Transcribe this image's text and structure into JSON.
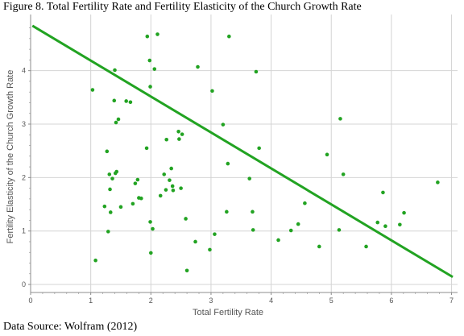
{
  "title": "Figure 8.  Total Fertility Rate and Fertility Elasticity of the Church Growth Rate",
  "footer": "Data Source: Wolfram (2012)",
  "chart_data": {
    "type": "scatter",
    "xlabel": "Total Fertility Rate",
    "ylabel": "Fertility Elasticity of the Church Growth Rate",
    "xlim": [
      0,
      7.1
    ],
    "ylim": [
      -0.15,
      5.05
    ],
    "xticks": [
      "0",
      "1",
      "2",
      "3",
      "4",
      "5",
      "6",
      "7"
    ],
    "yticks": [
      "0",
      "1",
      "2",
      "3",
      "4"
    ],
    "grid": true,
    "colors": {
      "points": "#22a322",
      "trend": "#22a322",
      "grid": "#d4d4d4",
      "axis": "#8c8c8c"
    },
    "trendline": {
      "x": [
        0.03,
        7.02
      ],
      "y": [
        4.84,
        0.14
      ]
    },
    "points": [
      [
        1.03,
        3.64
      ],
      [
        1.08,
        0.45
      ],
      [
        1.23,
        1.46
      ],
      [
        1.27,
        2.49
      ],
      [
        1.29,
        0.99
      ],
      [
        1.31,
        2.06
      ],
      [
        1.33,
        1.35
      ],
      [
        1.32,
        1.78
      ],
      [
        1.36,
        1.98
      ],
      [
        1.39,
        3.44
      ],
      [
        1.4,
        4.01
      ],
      [
        1.41,
        2.08
      ],
      [
        1.43,
        2.11
      ],
      [
        1.42,
        3.03
      ],
      [
        1.46,
        3.09
      ],
      [
        1.5,
        1.45
      ],
      [
        1.59,
        3.43
      ],
      [
        1.66,
        3.41
      ],
      [
        1.7,
        1.51
      ],
      [
        1.74,
        1.89
      ],
      [
        1.78,
        1.96
      ],
      [
        1.8,
        1.62
      ],
      [
        1.84,
        1.61
      ],
      [
        1.94,
        4.64
      ],
      [
        1.93,
        2.55
      ],
      [
        1.98,
        4.19
      ],
      [
        1.99,
        3.7
      ],
      [
        1.99,
        1.17
      ],
      [
        2.0,
        0.59
      ],
      [
        2.03,
        1.04
      ],
      [
        2.06,
        4.03
      ],
      [
        2.11,
        4.68
      ],
      [
        2.16,
        1.66
      ],
      [
        2.22,
        2.06
      ],
      [
        2.25,
        1.77
      ],
      [
        2.26,
        2.71
      ],
      [
        2.31,
        1.95
      ],
      [
        2.34,
        2.17
      ],
      [
        2.36,
        1.84
      ],
      [
        2.37,
        1.76
      ],
      [
        2.46,
        2.86
      ],
      [
        2.47,
        2.72
      ],
      [
        2.5,
        1.8
      ],
      [
        2.52,
        2.81
      ],
      [
        2.58,
        1.23
      ],
      [
        2.6,
        0.26
      ],
      [
        2.74,
        0.8
      ],
      [
        2.78,
        4.07
      ],
      [
        2.98,
        0.65
      ],
      [
        3.02,
        3.62
      ],
      [
        3.06,
        0.94
      ],
      [
        3.2,
        2.99
      ],
      [
        3.26,
        1.36
      ],
      [
        3.28,
        2.26
      ],
      [
        3.3,
        4.64
      ],
      [
        3.64,
        1.98
      ],
      [
        3.69,
        1.36
      ],
      [
        3.7,
        1.02
      ],
      [
        3.75,
        3.98
      ],
      [
        3.8,
        2.55
      ],
      [
        4.12,
        0.83
      ],
      [
        4.33,
        1.01
      ],
      [
        4.45,
        1.13
      ],
      [
        4.56,
        1.52
      ],
      [
        4.8,
        0.71
      ],
      [
        4.93,
        2.43
      ],
      [
        5.13,
        1.02
      ],
      [
        5.15,
        3.1
      ],
      [
        5.2,
        2.06
      ],
      [
        5.58,
        0.71
      ],
      [
        5.77,
        1.16
      ],
      [
        5.86,
        1.72
      ],
      [
        5.9,
        1.09
      ],
      [
        6.14,
        1.12
      ],
      [
        6.21,
        1.34
      ],
      [
        6.77,
        1.91
      ]
    ]
  }
}
